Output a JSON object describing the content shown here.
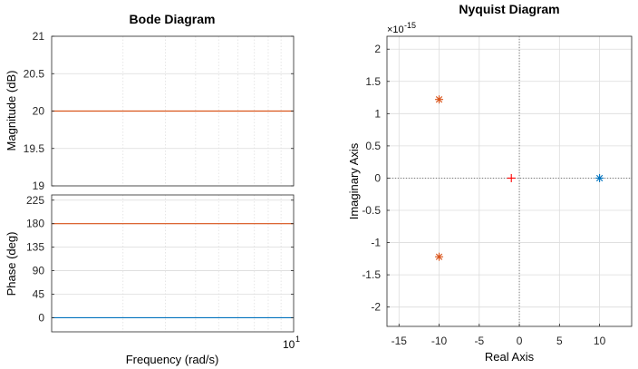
{
  "chart_data": [
    {
      "type": "line",
      "title": "Bode Diagram",
      "xlabel": "Frequency  (rad/s)",
      "xscale": "log",
      "x_tick_labels": [
        {
          "base": "10",
          "exp": "1"
        }
      ],
      "panels": [
        {
          "name": "magnitude",
          "ylabel": "Magnitude (dB)",
          "ylim": [
            19,
            21
          ],
          "yticks": [
            "21",
            "20.5",
            "20",
            "19.5",
            "19"
          ],
          "series": [
            {
              "color": "#d95319",
              "values": [
                20,
                20
              ]
            }
          ]
        },
        {
          "name": "phase",
          "ylabel": "Phase (deg)",
          "ylim": [
            -27,
            235
          ],
          "yticks": [
            "225",
            "180",
            "135",
            "90",
            "45",
            "0"
          ],
          "series": [
            {
              "color": "#d95319",
              "values": [
                180,
                180
              ]
            },
            {
              "color": "#0072bd",
              "values": [
                0,
                0
              ]
            }
          ]
        }
      ],
      "grid": true
    },
    {
      "type": "scatter",
      "title": "Nyquist Diagram",
      "xlabel": "Real Axis",
      "ylabel": "Imaginary Axis",
      "y_exponent_label": "×10",
      "y_exponent_value": "-15",
      "xlim": [
        -16.5,
        14
      ],
      "ylim": [
        -2.3,
        2.2
      ],
      "xticks": [
        "-15",
        "-10",
        "-5",
        "0",
        "5",
        "10"
      ],
      "yticks": [
        "2",
        "1.5",
        "1",
        "0.5",
        "0",
        "-0.5",
        "-1",
        "-1.5",
        "-2"
      ],
      "grid": true,
      "points": [
        {
          "x": -10,
          "y": 1.22,
          "marker": "*",
          "color": "#d95319"
        },
        {
          "x": -10,
          "y": -1.22,
          "marker": "*",
          "color": "#d95319"
        },
        {
          "x": 10,
          "y": 0,
          "marker": "*",
          "color": "#0072bd"
        },
        {
          "x": -1,
          "y": 0,
          "marker": "+",
          "color": "#ff0000"
        }
      ]
    }
  ]
}
